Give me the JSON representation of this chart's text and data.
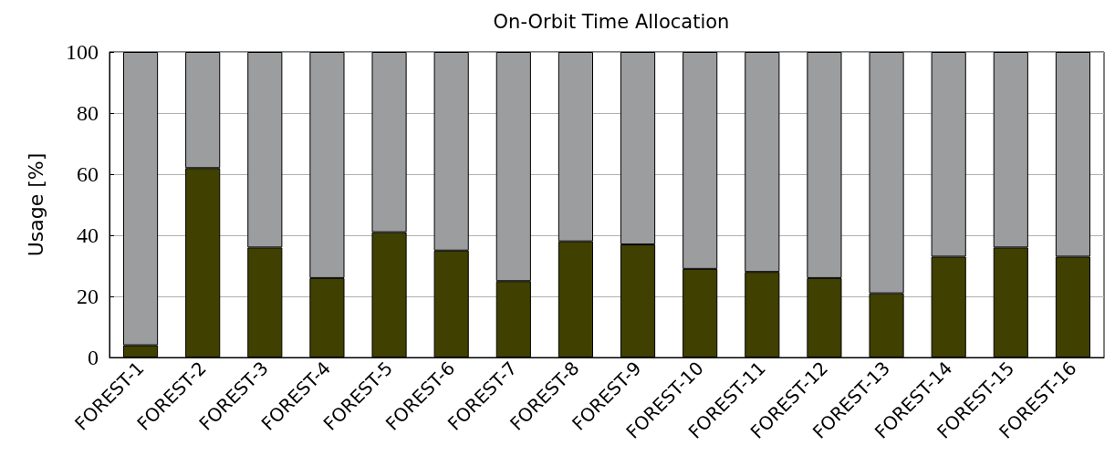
{
  "chart_data": {
    "type": "bar",
    "title": "On-Orbit Time Allocation",
    "ylabel": "Usage [%]",
    "stacked": true,
    "categories": [
      "FOREST-1",
      "FOREST-2",
      "FOREST-3",
      "FOREST-4",
      "FOREST-5",
      "FOREST-6",
      "FOREST-7",
      "FOREST-8",
      "FOREST-9",
      "FOREST-10",
      "FOREST-11",
      "FOREST-12",
      "FOREST-13",
      "FOREST-14",
      "FOREST-15",
      "FOREST-16"
    ],
    "series": [
      {
        "color": "#404000",
        "values": [
          4,
          62,
          36,
          26,
          41,
          35,
          25,
          38,
          37,
          29,
          28,
          26,
          21,
          33,
          36,
          33
        ]
      },
      {
        "color": "#9c9d9f",
        "values": [
          96,
          38,
          64,
          74,
          59,
          65,
          75,
          62,
          63,
          71,
          72,
          74,
          79,
          67,
          64,
          67
        ]
      }
    ],
    "ylim": [
      0,
      100
    ],
    "yticks": [
      0,
      20,
      40,
      60,
      80,
      100
    ],
    "grid": "y"
  }
}
